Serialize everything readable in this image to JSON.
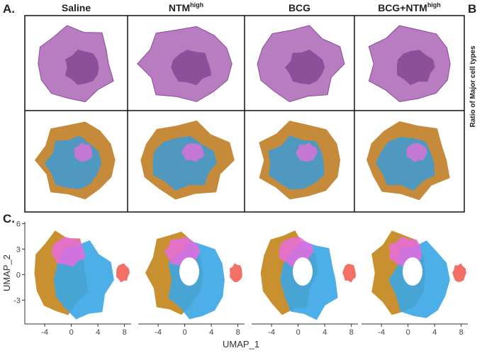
{
  "panel_a": {
    "label": "A.",
    "columns": [
      {
        "name": "Saline"
      },
      {
        "name": "NTM",
        "superscript": "high"
      },
      {
        "name": "BCG"
      },
      {
        "name": "BCG+NTM",
        "superscript": "high"
      }
    ]
  },
  "panel_b": {
    "label": "B",
    "ylabel": "Ratio of Major cell types"
  },
  "panel_c": {
    "label": "C.",
    "xlabel": "UMAP_1",
    "ylabel": "UMAP_2",
    "xlim": [
      -7,
      9
    ],
    "ylim": [
      -5.8,
      6.2
    ],
    "xticks": [
      -4,
      0,
      4,
      8
    ],
    "yticks": [
      -3,
      0,
      3,
      6
    ]
  }
}
